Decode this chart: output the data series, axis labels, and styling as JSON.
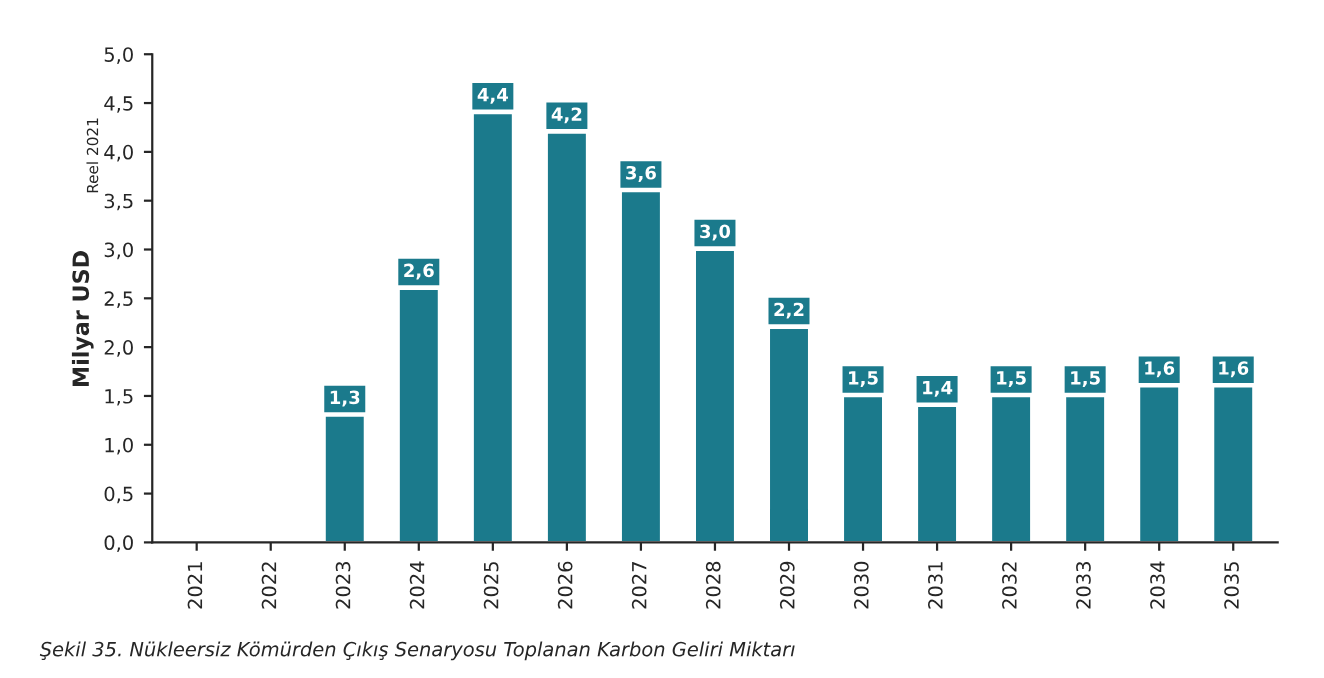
{
  "chart_data": {
    "type": "bar",
    "ylabel": "Milyar USD$_{Reel 2021}$",
    "categories": [
      "2021",
      "2022",
      "2023",
      "2024",
      "2025",
      "2026",
      "2027",
      "2028",
      "2029",
      "2030",
      "2031",
      "2032",
      "2033",
      "2034",
      "2035"
    ],
    "values": [
      null,
      null,
      1.3,
      2.6,
      4.4,
      4.2,
      3.6,
      3.0,
      2.2,
      1.5,
      1.4,
      1.5,
      1.5,
      1.6,
      1.6
    ],
    "value_labels": [
      null,
      null,
      "1,3",
      "2,6",
      "4,4",
      "4,2",
      "3,6",
      "3,0",
      "2,2",
      "1,5",
      "1,4",
      "1,5",
      "1,5",
      "1,6",
      "1,6"
    ],
    "color": "#1b7a8c",
    "ylim": [
      0,
      5
    ],
    "yticks": [
      {
        "value": 0,
        "label": "0,0"
      },
      {
        "value": 0.5,
        "label": "0,5"
      },
      {
        "value": 1,
        "label": "1,0"
      },
      {
        "value": 1.5,
        "label": "1,5"
      },
      {
        "value": 2,
        "label": "2,0"
      },
      {
        "value": 2.5,
        "label": "2,5"
      },
      {
        "value": 3,
        "label": "3,0"
      },
      {
        "value": 3.5,
        "label": "3,5"
      },
      {
        "value": 4,
        "label": "4,0"
      },
      {
        "value": 4.5,
        "label": "4,5"
      },
      {
        "value": 5,
        "label": "5,0"
      }
    ],
    "grid": false,
    "annotations": [
      "Şekil 35. Nükleersiz Kömürden Çıkış Senaryosu Toplanan Karbon Geliri Miktarı"
    ]
  }
}
